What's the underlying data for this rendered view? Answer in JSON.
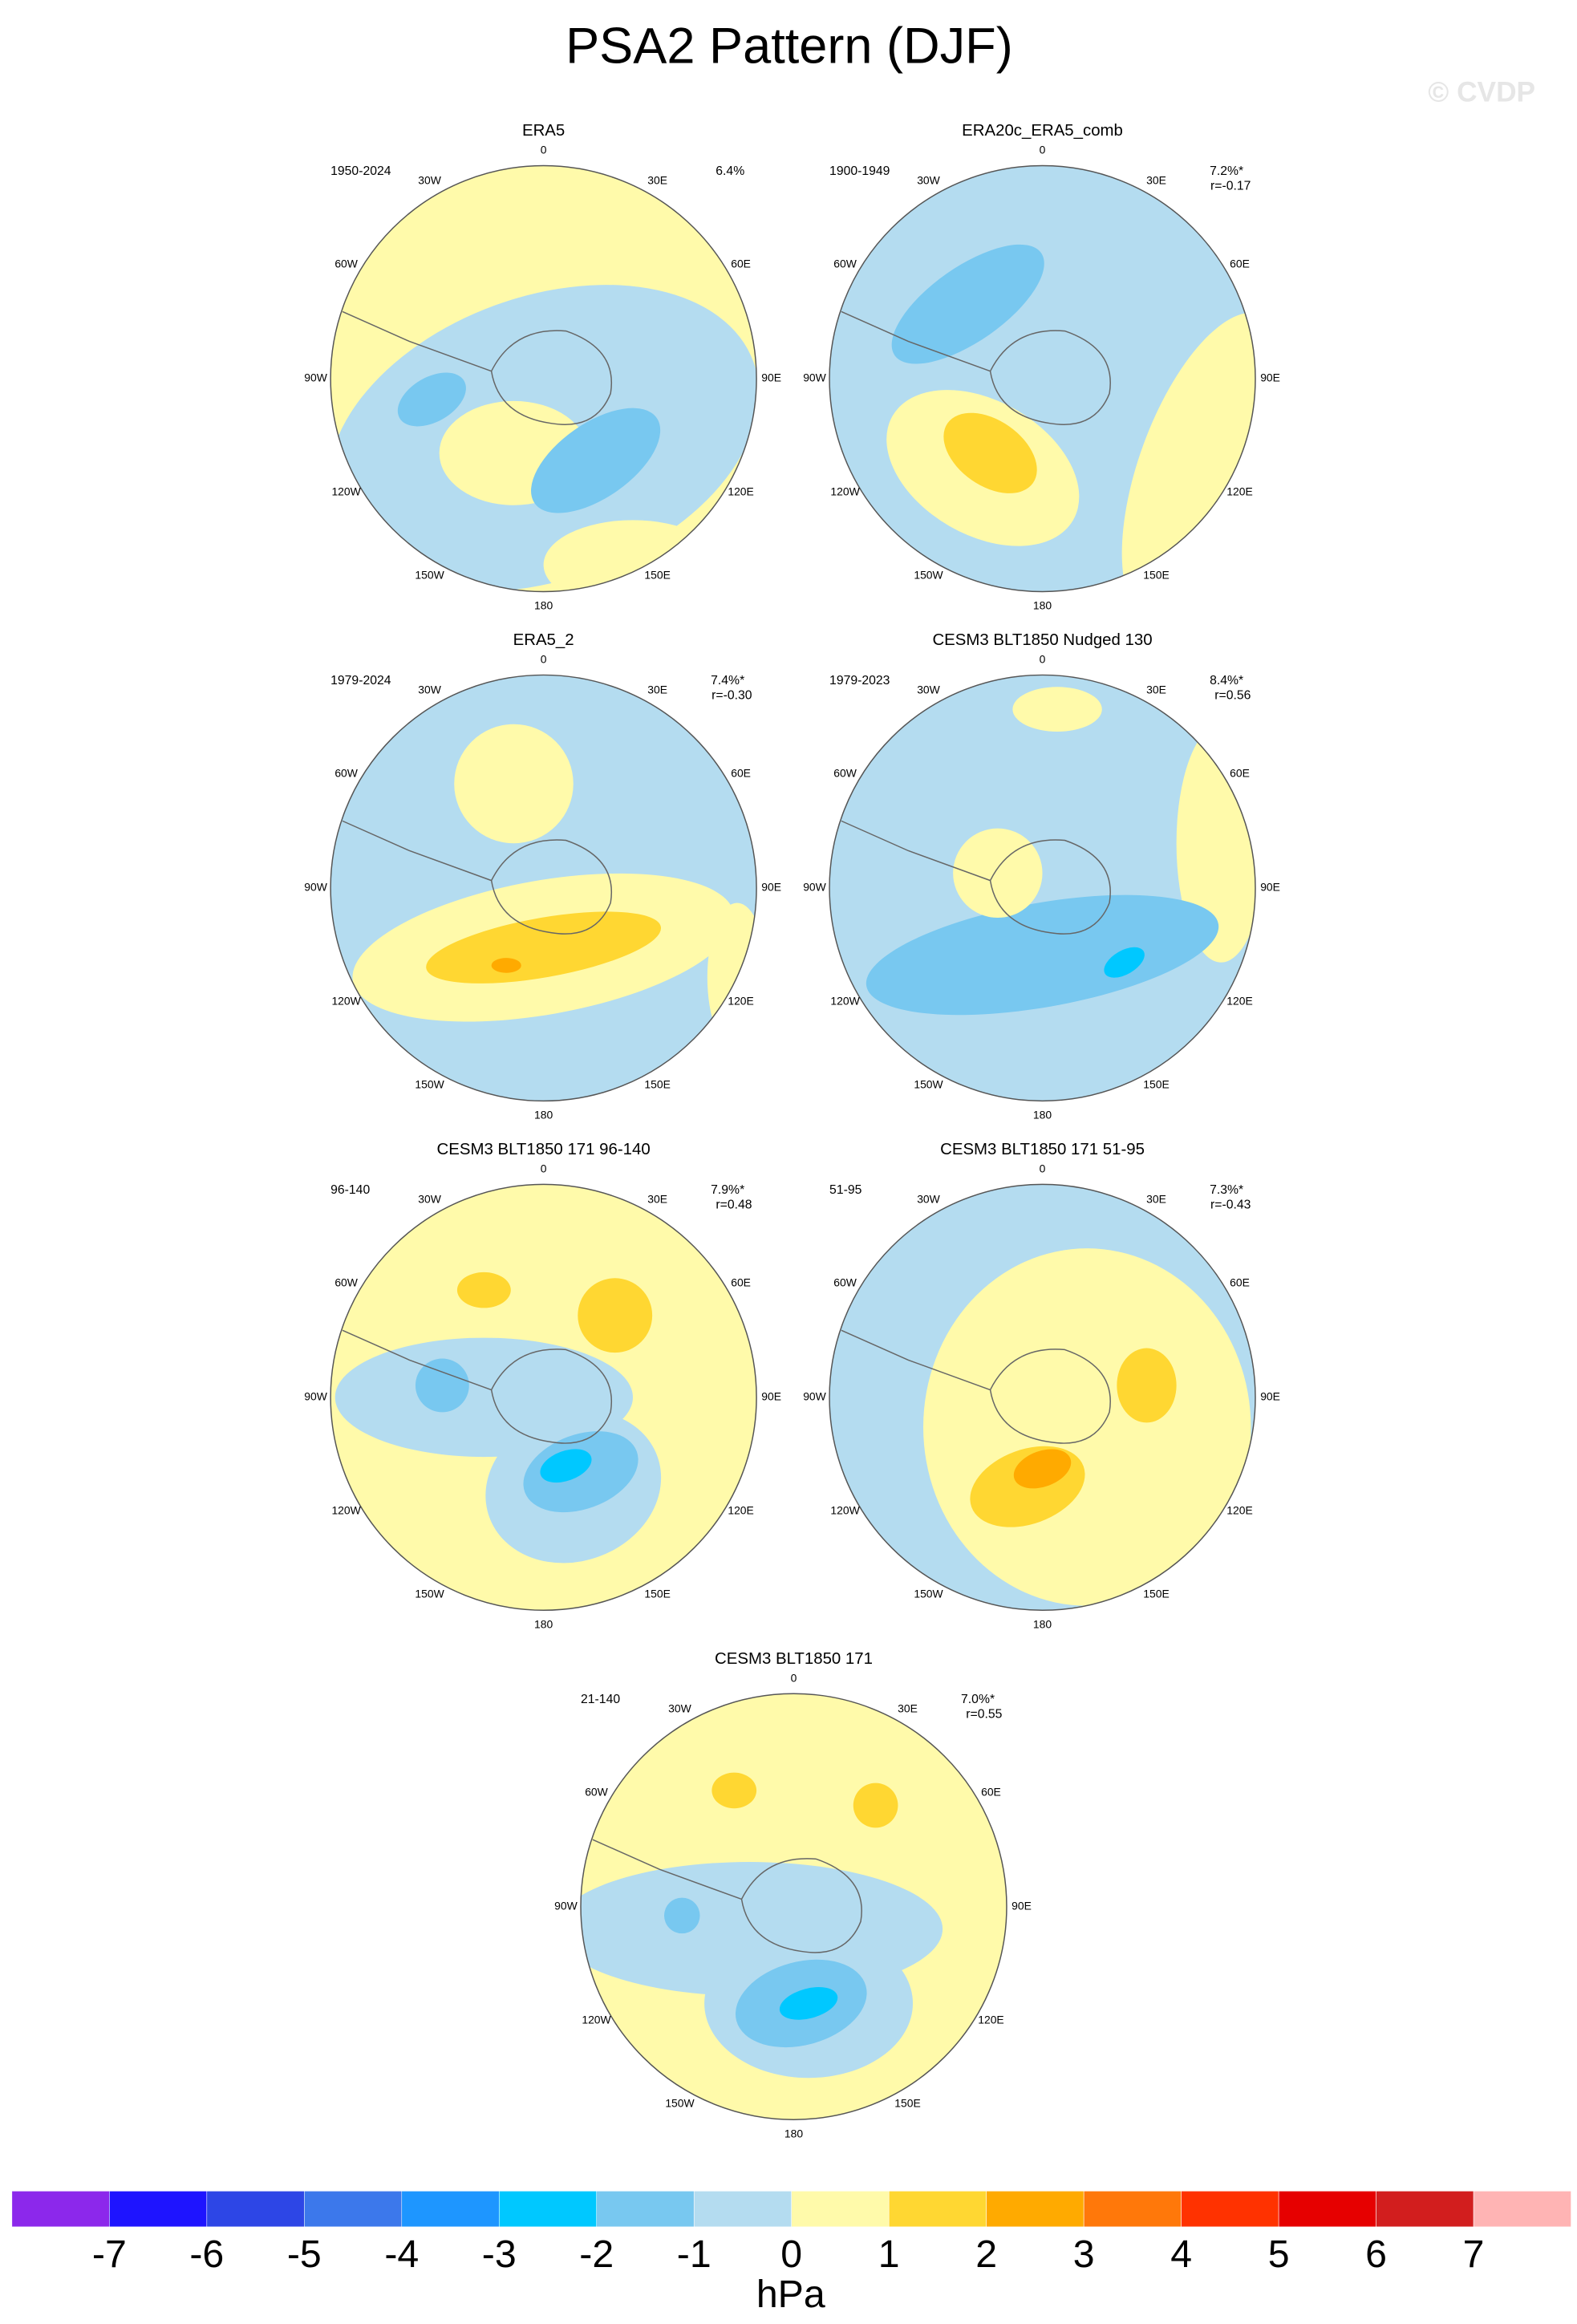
{
  "title": "PSA2 Pattern (DJF)",
  "watermark": "© CVDP",
  "lon_labels": [
    "0",
    "30E",
    "60E",
    "90E",
    "120E",
    "150E",
    "180",
    "150W",
    "120W",
    "90W",
    "60W",
    "30W"
  ],
  "panels": [
    {
      "title": "ERA5",
      "period": "1950-2024",
      "pct": "6.4%"
    },
    {
      "title": "ERA20c_ERA5_comb",
      "period": "1900-1949",
      "pct": "7.2%*",
      "r": "r=-0.17"
    },
    {
      "title": "ERA5_2",
      "period": "1979-2024",
      "pct": "7.4%*",
      "r": "r=-0.30"
    },
    {
      "title": "CESM3 BLT1850 Nudged 130",
      "period": "1979-2023",
      "pct": "8.4%*",
      "r": "r=0.56"
    },
    {
      "title": "CESM3 BLT1850 171 96-140",
      "period": "96-140",
      "pct": "7.9%*",
      "r": "r=0.48"
    },
    {
      "title": "CESM3 BLT1850 171 51-95",
      "period": "51-95",
      "pct": "7.3%*",
      "r": "r=-0.43"
    },
    {
      "title": "CESM3 BLT1850 171",
      "period": "21-140",
      "pct": "7.0%*",
      "r": "r=0.55"
    }
  ],
  "colorbar": {
    "levels": [
      -7,
      -6,
      -5,
      -4,
      -3,
      -2,
      -1,
      0,
      1,
      2,
      3,
      4,
      5,
      6,
      7
    ],
    "colors": [
      "#8c28eb",
      "#1e14ff",
      "#2d46e6",
      "#3c78eb",
      "#1e96ff",
      "#00c8ff",
      "#78c8f0",
      "#b4dcf0",
      "#fffaaa",
      "#ffd732",
      "#ffaa00",
      "#ff780a",
      "#ff3200",
      "#e60000",
      "#d21e1e",
      "#ffb4b4"
    ],
    "unit": "hPa"
  }
}
